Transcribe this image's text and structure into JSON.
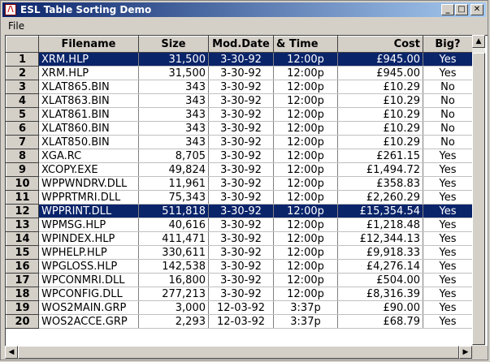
{
  "window": {
    "title": "ESL Table Sorting Demo"
  },
  "menu": {
    "file": "File"
  },
  "columns": [
    "Filename",
    "Size",
    "Mod.Date",
    "& Time",
    "Cost",
    "Big?"
  ],
  "rows": [
    {
      "n": "1",
      "name": "XRM.HLP",
      "size": "31,500",
      "date": "3-30-92",
      "time": "12:00p",
      "cost": "£945.00",
      "big": "Yes",
      "selected": true
    },
    {
      "n": "2",
      "name": "XRM.HLP",
      "size": "31,500",
      "date": "3-30-92",
      "time": "12:00p",
      "cost": "£945.00",
      "big": "Yes"
    },
    {
      "n": "3",
      "name": "XLAT865.BIN",
      "size": "343",
      "date": "3-30-92",
      "time": "12:00p",
      "cost": "£10.29",
      "big": "No"
    },
    {
      "n": "4",
      "name": "XLAT863.BIN",
      "size": "343",
      "date": "3-30-92",
      "time": "12:00p",
      "cost": "£10.29",
      "big": "No"
    },
    {
      "n": "5",
      "name": "XLAT861.BIN",
      "size": "343",
      "date": "3-30-92",
      "time": "12:00p",
      "cost": "£10.29",
      "big": "No"
    },
    {
      "n": "6",
      "name": "XLAT860.BIN",
      "size": "343",
      "date": "3-30-92",
      "time": "12:00p",
      "cost": "£10.29",
      "big": "No"
    },
    {
      "n": "7",
      "name": "XLAT850.BIN",
      "size": "343",
      "date": "3-30-92",
      "time": "12:00p",
      "cost": "£10.29",
      "big": "No"
    },
    {
      "n": "8",
      "name": "XGA.RC",
      "size": "8,705",
      "date": "3-30-92",
      "time": "12:00p",
      "cost": "£261.15",
      "big": "Yes"
    },
    {
      "n": "9",
      "name": "XCOPY.EXE",
      "size": "49,824",
      "date": "3-30-92",
      "time": "12:00p",
      "cost": "£1,494.72",
      "big": "Yes"
    },
    {
      "n": "10",
      "name": "WPPWNDRV.DLL",
      "size": "11,961",
      "date": "3-30-92",
      "time": "12:00p",
      "cost": "£358.83",
      "big": "Yes"
    },
    {
      "n": "11",
      "name": "WPPRTMRI.DLL",
      "size": "75,343",
      "date": "3-30-92",
      "time": "12:00p",
      "cost": "£2,260.29",
      "big": "Yes"
    },
    {
      "n": "12",
      "name": "WPPRINT.DLL",
      "size": "511,818",
      "date": "3-30-92",
      "time": "12:00p",
      "cost": "£15,354.54",
      "big": "Yes",
      "selected": true
    },
    {
      "n": "13",
      "name": "WPMSG.HLP",
      "size": "40,616",
      "date": "3-30-92",
      "time": "12:00p",
      "cost": "£1,218.48",
      "big": "Yes"
    },
    {
      "n": "14",
      "name": "WPINDEX.HLP",
      "size": "411,471",
      "date": "3-30-92",
      "time": "12:00p",
      "cost": "£12,344.13",
      "big": "Yes"
    },
    {
      "n": "15",
      "name": "WPHELP.HLP",
      "size": "330,611",
      "date": "3-30-92",
      "time": "12:00p",
      "cost": "£9,918.33",
      "big": "Yes"
    },
    {
      "n": "16",
      "name": "WPGLOSS.HLP",
      "size": "142,538",
      "date": "3-30-92",
      "time": "12:00p",
      "cost": "£4,276.14",
      "big": "Yes"
    },
    {
      "n": "17",
      "name": "WPCONMRI.DLL",
      "size": "16,800",
      "date": "3-30-92",
      "time": "12:00p",
      "cost": "£504.00",
      "big": "Yes"
    },
    {
      "n": "18",
      "name": "WPCONFIG.DLL",
      "size": "277,213",
      "date": "3-30-92",
      "time": "12:00p",
      "cost": "£8,316.39",
      "big": "Yes"
    },
    {
      "n": "19",
      "name": "WOS2MAIN.GRP",
      "size": "3,000",
      "date": "12-03-92",
      "time": "3:37p",
      "cost": "£90.00",
      "big": "Yes"
    },
    {
      "n": "20",
      "name": "WOS2ACCE.GRP",
      "size": "2,293",
      "date": "12-03-92",
      "time": "3:37p",
      "cost": "£68.79",
      "big": "Yes"
    }
  ]
}
